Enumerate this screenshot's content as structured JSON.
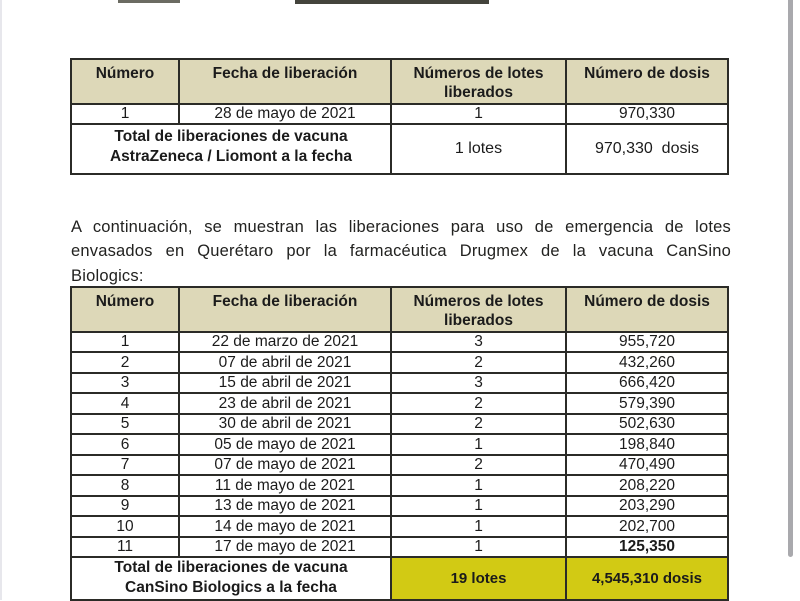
{
  "colors": {
    "header_bg": "#ddd8b8",
    "highlight_yellow": "#d2ca14",
    "table_border": "#2b2b27"
  },
  "paragraph": "A continuación, se muestran las liberaciones para uso de emergencia de lotes envasados en Querétaro por la farmacéutica Drugmex de la vacuna CanSino Biologics:",
  "table1": {
    "headers": [
      "Número",
      "Fecha de liberación",
      "Números de lotes liberados",
      "Número de dosis"
    ],
    "rows": [
      [
        "1",
        "28 de mayo de 2021",
        "1",
        "970,330"
      ]
    ],
    "total": {
      "label_line1": "Total de liberaciones de vacuna",
      "label_line2": "AstraZeneca / Liomont a la fecha",
      "lotes": "1 lotes",
      "dosis": "970,330  dosis"
    }
  },
  "table2": {
    "headers": [
      "Número",
      "Fecha de liberación",
      "Números de lotes liberados",
      "Número de dosis"
    ],
    "rows": [
      [
        "1",
        "22 de marzo de 2021",
        "3",
        "955,720"
      ],
      [
        "2",
        "07 de abril de 2021",
        "2",
        "432,260"
      ],
      [
        "3",
        "15 de abril de 2021",
        "3",
        "666,420"
      ],
      [
        "4",
        "23 de abril de 2021",
        "2",
        "579,390"
      ],
      [
        "5",
        "30 de abril de 2021",
        "2",
        "502,630"
      ],
      [
        "6",
        "05 de mayo de 2021",
        "1",
        "198,840"
      ],
      [
        "7",
        "07 de mayo de 2021",
        "2",
        "470,490"
      ],
      [
        "8",
        "11 de mayo de 2021",
        "1",
        "208,220"
      ],
      [
        "9",
        "13 de mayo de 2021",
        "1",
        "203,290"
      ],
      [
        "10",
        "14 de mayo de 2021",
        "1",
        "202,700"
      ],
      [
        "11",
        "17 de mayo de 2021",
        "1",
        "125,350"
      ]
    ],
    "total": {
      "label_line1": "Total de liberaciones de vacuna",
      "label_line2": "CanSino Biologics a la fecha",
      "lotes": "19 lotes",
      "dosis": "4,545,310 dosis"
    }
  }
}
